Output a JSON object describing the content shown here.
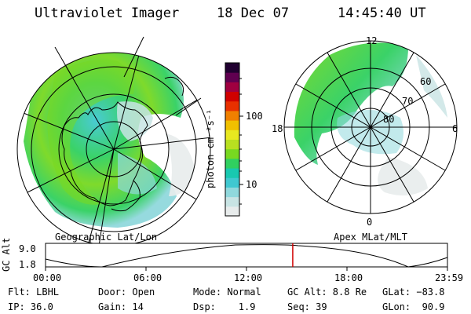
{
  "header": {
    "instrument": "Ultraviolet Imager",
    "date": "18 Dec 07",
    "time": "14:45:40 UT"
  },
  "left_map": {
    "label": "Geographic Lat/Lon"
  },
  "right_map": {
    "label": "Apex MLat/MLT",
    "mlt_labels": [
      "12",
      "18",
      "6",
      "0"
    ],
    "lat_labels": [
      "60",
      "70",
      "80"
    ]
  },
  "colorbar": {
    "unit": "photon cm⁻²s⁻¹",
    "ticks": [
      "100",
      "10"
    ]
  },
  "timeline": {
    "ylabel": "GC Alt",
    "y_ticks": [
      "9.0",
      "1.8"
    ],
    "x_ticks": [
      "00:00",
      "06:00",
      "12:00",
      "18:00",
      "23:59"
    ],
    "current_time_fraction": 0.6151
  },
  "status": {
    "row1": [
      "Flt: LBHL",
      "Door: Open",
      "Mode: Normal",
      "GC Alt: 8.8 Re",
      "GLat: −83.8"
    ],
    "row2": [
      "IP: 36.0",
      "Gain: 14",
      "Dsp:    1.9",
      "Seq: 39",
      "GLon:  90.9"
    ]
  },
  "colors": {
    "scale": [
      "#e8ecec",
      "#c8e4e4",
      "#90d8dc",
      "#40c8d0",
      "#18c8b0",
      "#30d060",
      "#78d820",
      "#b8e020",
      "#e8e820",
      "#f0c000",
      "#f08000",
      "#e83000",
      "#d00000",
      "#a00040",
      "#600050",
      "#200030"
    ],
    "current_time_marker": "#d00000"
  }
}
